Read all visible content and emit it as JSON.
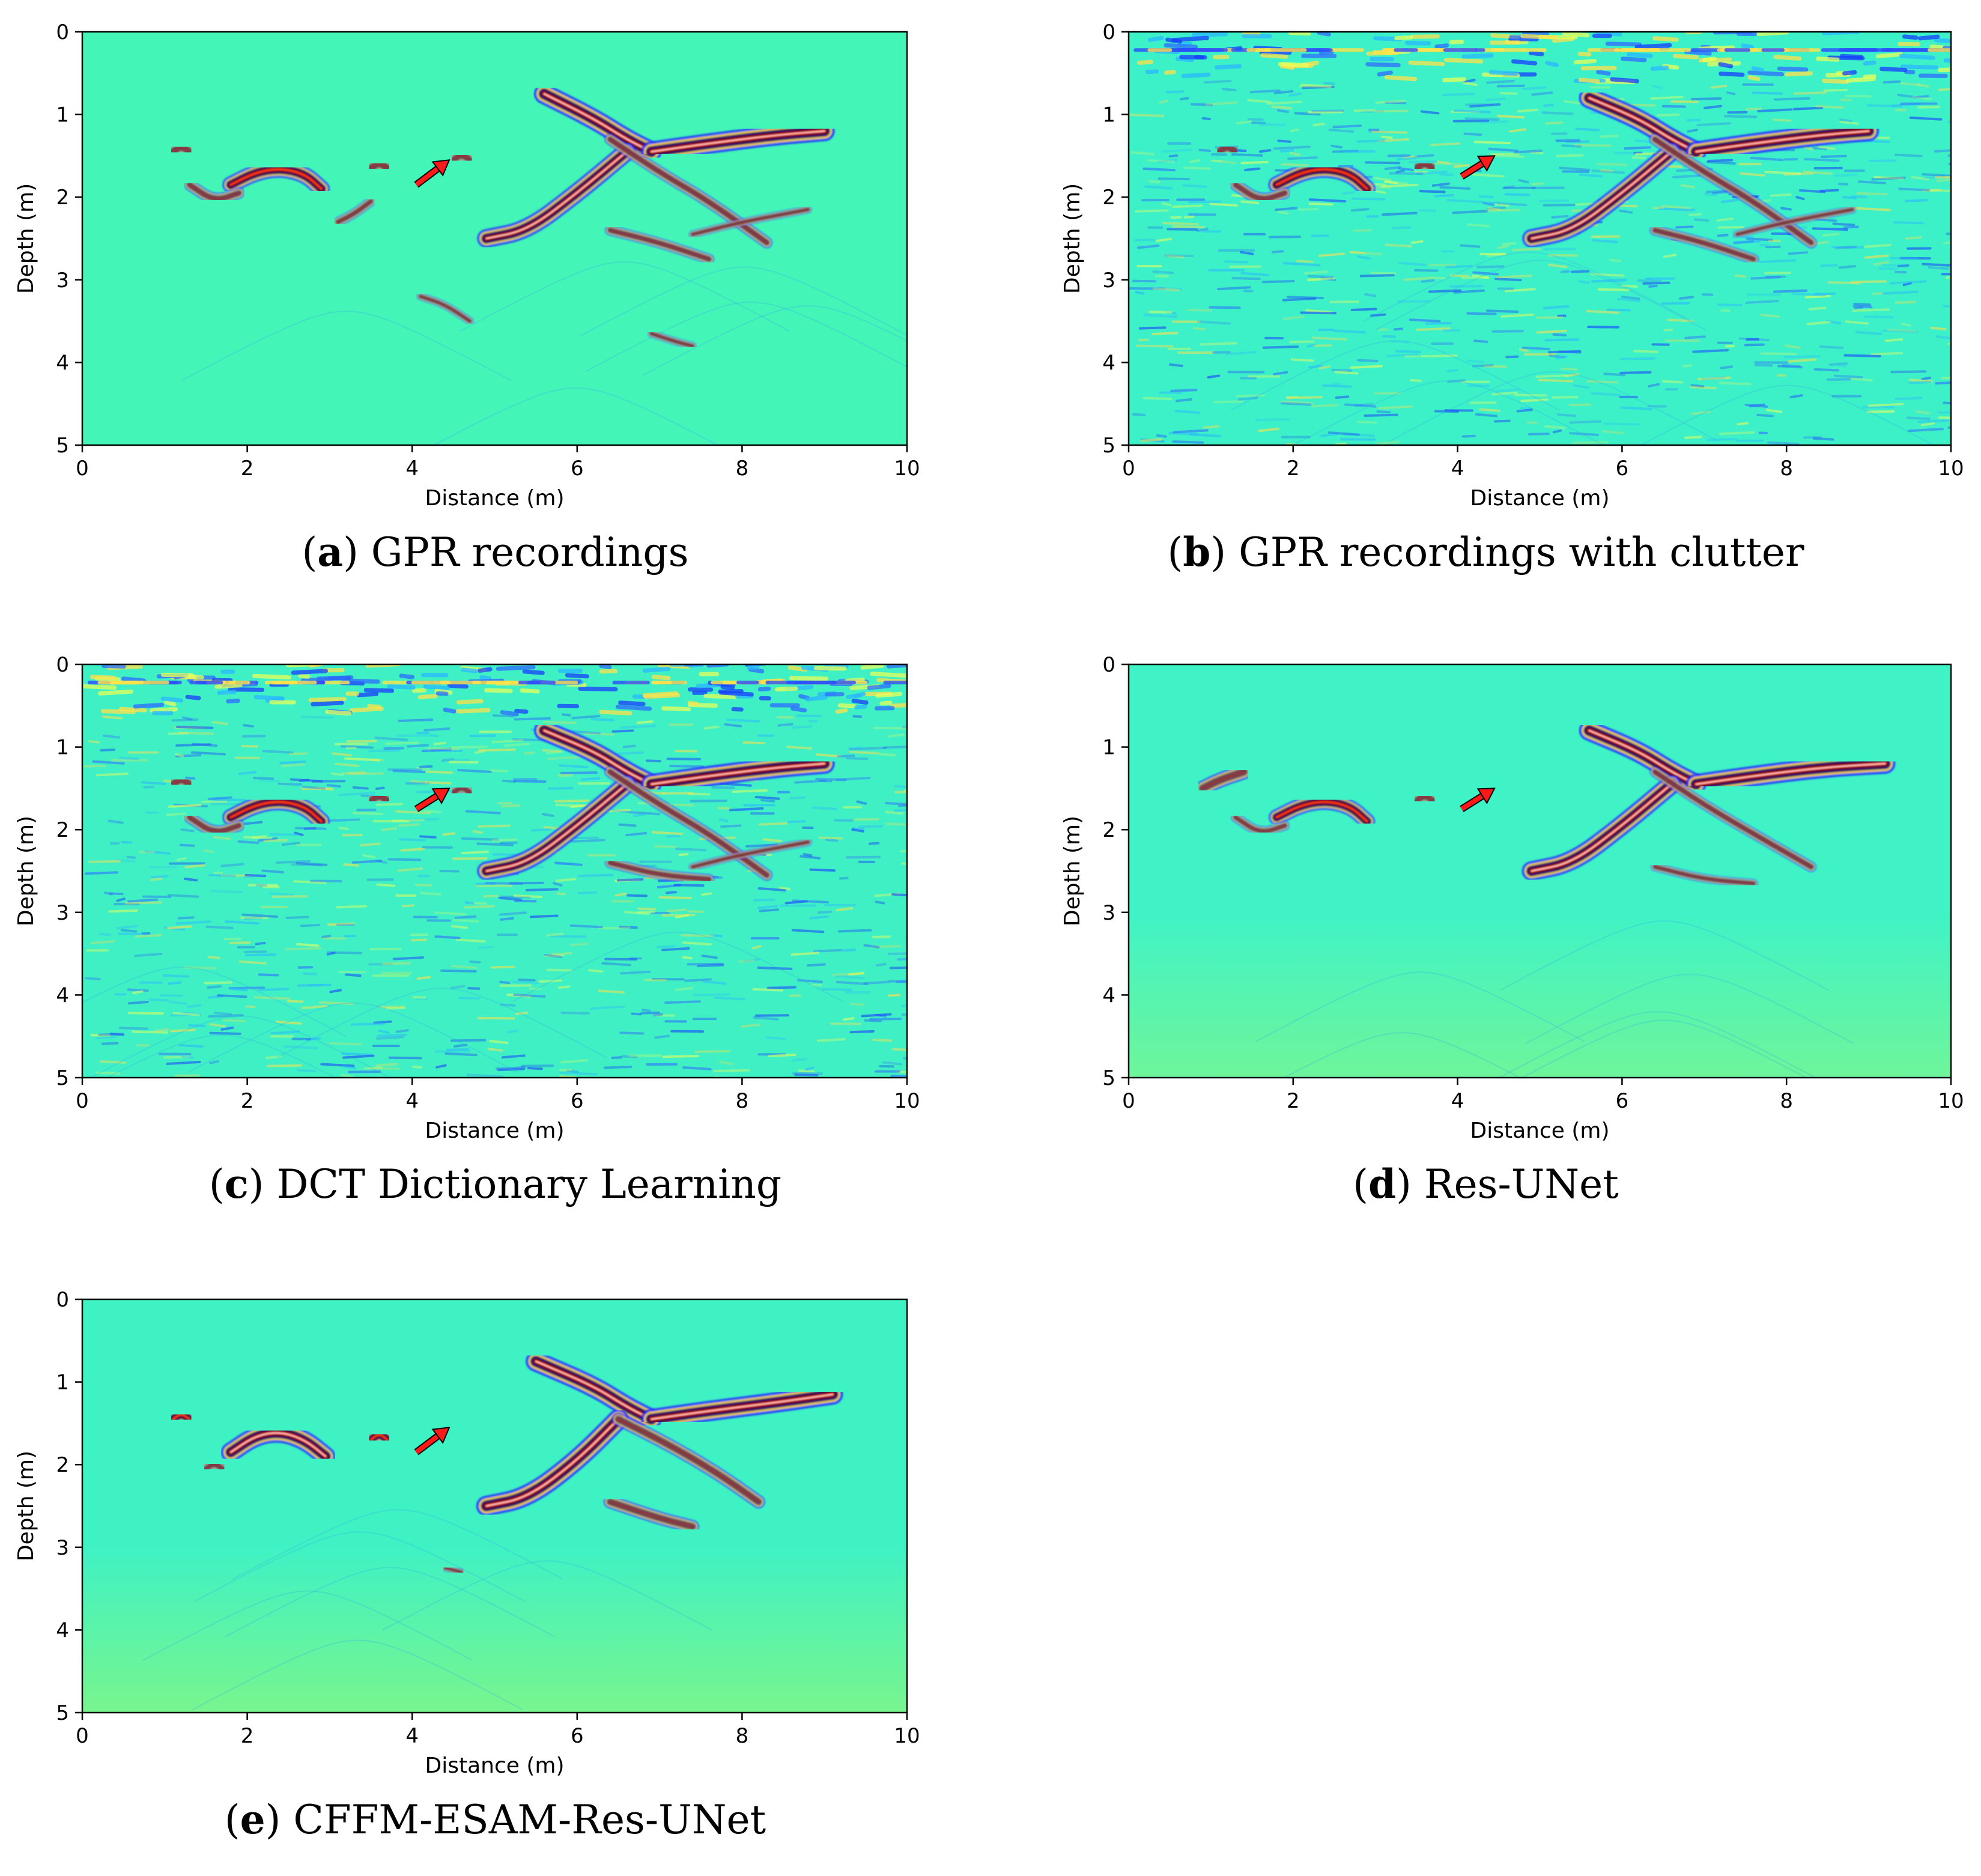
{
  "chart_data": [
    {
      "type": "heatmap",
      "panel_label": "a",
      "caption": "GPR recordings",
      "xlabel": "Distance (m)",
      "ylabel": "Depth (m)",
      "xlim": [
        0,
        10
      ],
      "ylim": [
        5,
        0
      ],
      "xticks": [
        "0",
        "2",
        "4",
        "6",
        "8",
        "10"
      ],
      "yticks": [
        "0",
        "1",
        "2",
        "3",
        "4",
        "5"
      ],
      "colormap": "jet",
      "background_color": "#44f5b8",
      "clutter": false,
      "arrow": {
        "from": [
          4.05,
          1.85
        ],
        "to": [
          4.45,
          1.55
        ],
        "color": "#ff1a1a"
      },
      "reflections": [
        {
          "x": [
            5.6,
            6.2,
            6.6,
            6.9
          ],
          "y": [
            0.75,
            1.05,
            1.3,
            1.45
          ],
          "strength": 1.0
        },
        {
          "x": [
            6.9,
            7.6,
            8.4,
            9.0
          ],
          "y": [
            1.45,
            1.35,
            1.25,
            1.2
          ],
          "strength": 1.0
        },
        {
          "x": [
            4.9,
            5.4,
            6.0,
            6.6
          ],
          "y": [
            2.5,
            2.4,
            1.95,
            1.45
          ],
          "strength": 0.9
        },
        {
          "x": [
            6.4,
            7.0,
            7.6,
            8.3
          ],
          "y": [
            1.3,
            1.7,
            2.05,
            2.55
          ],
          "strength": 0.5
        },
        {
          "x": [
            1.8,
            2.1,
            2.4,
            2.7,
            2.9
          ],
          "y": [
            1.85,
            1.7,
            1.65,
            1.72,
            1.9
          ],
          "strength": 0.8
        },
        {
          "x": [
            1.1,
            1.2,
            1.3
          ],
          "y": [
            1.45,
            1.38,
            1.45
          ],
          "strength": 0.7
        },
        {
          "x": [
            3.5,
            3.6,
            3.7
          ],
          "y": [
            1.65,
            1.58,
            1.65
          ],
          "strength": 0.7
        },
        {
          "x": [
            4.5,
            4.6,
            4.7
          ],
          "y": [
            1.55,
            1.48,
            1.55
          ],
          "strength": 0.6
        },
        {
          "x": [
            1.3,
            1.6,
            1.9
          ],
          "y": [
            1.85,
            2.05,
            1.95
          ],
          "strength": 0.5
        },
        {
          "x": [
            3.1,
            3.3,
            3.5
          ],
          "y": [
            2.3,
            2.2,
            2.05
          ],
          "strength": 0.4
        },
        {
          "x": [
            6.4,
            7.0,
            7.6
          ],
          "y": [
            2.4,
            2.55,
            2.75
          ],
          "strength": 0.45
        },
        {
          "x": [
            7.4,
            8.0,
            8.8
          ],
          "y": [
            2.45,
            2.3,
            2.15
          ],
          "strength": 0.3
        },
        {
          "x": [
            4.1,
            4.4,
            4.7
          ],
          "y": [
            3.2,
            3.3,
            3.5
          ],
          "strength": 0.3
        },
        {
          "x": [
            6.9,
            7.2,
            7.4
          ],
          "y": [
            3.65,
            3.75,
            3.8
          ],
          "strength": 0.3
        }
      ]
    },
    {
      "type": "heatmap",
      "panel_label": "b",
      "caption": "GPR recordings with clutter",
      "xlabel": "Distance (m)",
      "ylabel": "Depth (m)",
      "xlim": [
        0,
        10
      ],
      "ylim": [
        5,
        0
      ],
      "xticks": [
        "0",
        "2",
        "4",
        "6",
        "8",
        "10"
      ],
      "yticks": [
        "0",
        "1",
        "2",
        "3",
        "4",
        "5"
      ],
      "colormap": "jet",
      "background_color": "#3cf0c8",
      "clutter": true,
      "arrow": {
        "from": [
          4.05,
          1.75
        ],
        "to": [
          4.45,
          1.5
        ],
        "color": "#ff1a1a"
      },
      "reflections": [
        {
          "x": [
            5.6,
            6.2,
            6.6,
            6.9
          ],
          "y": [
            0.8,
            1.05,
            1.3,
            1.45
          ],
          "strength": 1.0
        },
        {
          "x": [
            6.9,
            7.6,
            8.4,
            9.0
          ],
          "y": [
            1.45,
            1.35,
            1.25,
            1.2
          ],
          "strength": 1.0
        },
        {
          "x": [
            4.9,
            5.4,
            6.0,
            6.6
          ],
          "y": [
            2.5,
            2.4,
            1.95,
            1.45
          ],
          "strength": 0.9
        },
        {
          "x": [
            6.4,
            7.0,
            7.6,
            8.3
          ],
          "y": [
            1.3,
            1.7,
            2.05,
            2.55
          ],
          "strength": 0.5
        },
        {
          "x": [
            1.8,
            2.1,
            2.4,
            2.7,
            2.9
          ],
          "y": [
            1.85,
            1.7,
            1.65,
            1.72,
            1.9
          ],
          "strength": 0.8
        },
        {
          "x": [
            1.1,
            1.2,
            1.3
          ],
          "y": [
            1.45,
            1.38,
            1.45
          ],
          "strength": 0.7
        },
        {
          "x": [
            3.5,
            3.6,
            3.7
          ],
          "y": [
            1.65,
            1.58,
            1.65
          ],
          "strength": 0.7
        },
        {
          "x": [
            1.3,
            1.6,
            1.9
          ],
          "y": [
            1.85,
            2.05,
            1.95
          ],
          "strength": 0.5
        },
        {
          "x": [
            6.4,
            7.0,
            7.6
          ],
          "y": [
            2.4,
            2.55,
            2.75
          ],
          "strength": 0.45
        },
        {
          "x": [
            7.4,
            8.0,
            8.8
          ],
          "y": [
            2.45,
            2.3,
            2.15
          ],
          "strength": 0.3
        }
      ]
    },
    {
      "type": "heatmap",
      "panel_label": "c",
      "caption": "DCT Dictionary Learning",
      "xlabel": "Distance (m)",
      "ylabel": "Depth (m)",
      "xlim": [
        0,
        10
      ],
      "ylim": [
        5,
        0
      ],
      "xticks": [
        "0",
        "2",
        "4",
        "6",
        "8",
        "10"
      ],
      "yticks": [
        "0",
        "1",
        "2",
        "3",
        "4",
        "5"
      ],
      "colormap": "jet",
      "background_color": "#3ff0c4",
      "clutter": true,
      "arrow": {
        "from": [
          4.05,
          1.75
        ],
        "to": [
          4.45,
          1.5
        ],
        "color": "#ff1a1a"
      },
      "reflections": [
        {
          "x": [
            5.6,
            6.2,
            6.6,
            6.9
          ],
          "y": [
            0.8,
            1.05,
            1.3,
            1.45
          ],
          "strength": 1.0
        },
        {
          "x": [
            6.9,
            7.6,
            8.4,
            9.0
          ],
          "y": [
            1.45,
            1.35,
            1.25,
            1.2
          ],
          "strength": 1.0
        },
        {
          "x": [
            4.9,
            5.4,
            6.0,
            6.6
          ],
          "y": [
            2.5,
            2.4,
            1.95,
            1.45
          ],
          "strength": 0.9
        },
        {
          "x": [
            6.4,
            7.0,
            7.6,
            8.3
          ],
          "y": [
            1.3,
            1.7,
            2.05,
            2.55
          ],
          "strength": 0.5
        },
        {
          "x": [
            1.8,
            2.1,
            2.4,
            2.7,
            2.9
          ],
          "y": [
            1.85,
            1.7,
            1.65,
            1.72,
            1.9
          ],
          "strength": 0.8
        },
        {
          "x": [
            1.1,
            1.2,
            1.3
          ],
          "y": [
            1.45,
            1.38,
            1.45
          ],
          "strength": 0.7
        },
        {
          "x": [
            3.5,
            3.6,
            3.7
          ],
          "y": [
            1.65,
            1.58,
            1.65
          ],
          "strength": 0.7
        },
        {
          "x": [
            4.5,
            4.6,
            4.7
          ],
          "y": [
            1.55,
            1.48,
            1.55
          ],
          "strength": 0.5
        },
        {
          "x": [
            1.3,
            1.6,
            1.9
          ],
          "y": [
            1.85,
            2.05,
            1.95
          ],
          "strength": 0.5
        },
        {
          "x": [
            6.4,
            7.0,
            7.6
          ],
          "y": [
            2.4,
            2.55,
            2.6
          ],
          "strength": 0.45
        },
        {
          "x": [
            7.4,
            8.0,
            8.8
          ],
          "y": [
            2.45,
            2.3,
            2.15
          ],
          "strength": 0.3
        }
      ]
    },
    {
      "type": "heatmap",
      "panel_label": "d",
      "caption": "Res-UNet",
      "xlabel": "Distance (m)",
      "ylabel": "Depth (m)",
      "xlim": [
        0,
        10
      ],
      "ylim": [
        5,
        0
      ],
      "xticks": [
        "0",
        "2",
        "4",
        "6",
        "8",
        "10"
      ],
      "yticks": [
        "0",
        "1",
        "2",
        "3",
        "4",
        "5"
      ],
      "colormap": "jet",
      "background_color": "#3ff3c6",
      "background_bottom_color": "#6ef59a",
      "clutter": false,
      "arrow": {
        "from": [
          4.05,
          1.75
        ],
        "to": [
          4.45,
          1.5
        ],
        "color": "#ff1a1a"
      },
      "reflections": [
        {
          "x": [
            5.6,
            6.2,
            6.6,
            6.9
          ],
          "y": [
            0.8,
            1.05,
            1.3,
            1.45
          ],
          "strength": 1.0
        },
        {
          "x": [
            6.9,
            7.6,
            8.4,
            9.2
          ],
          "y": [
            1.45,
            1.35,
            1.25,
            1.2
          ],
          "strength": 1.0
        },
        {
          "x": [
            4.9,
            5.4,
            6.0,
            6.6
          ],
          "y": [
            2.5,
            2.4,
            1.95,
            1.45
          ],
          "strength": 0.95
        },
        {
          "x": [
            6.4,
            7.0,
            7.6,
            8.3
          ],
          "y": [
            1.3,
            1.7,
            2.05,
            2.45
          ],
          "strength": 0.45
        },
        {
          "x": [
            1.8,
            2.1,
            2.4,
            2.7,
            2.9
          ],
          "y": [
            1.85,
            1.7,
            1.65,
            1.72,
            1.9
          ],
          "strength": 0.75
        },
        {
          "x": [
            0.9,
            1.1,
            1.4
          ],
          "y": [
            1.5,
            1.4,
            1.3
          ],
          "strength": 0.7
        },
        {
          "x": [
            3.5,
            3.6,
            3.7
          ],
          "y": [
            1.65,
            1.58,
            1.65
          ],
          "strength": 0.6
        },
        {
          "x": [
            1.3,
            1.6,
            1.9
          ],
          "y": [
            1.85,
            2.05,
            1.95
          ],
          "strength": 0.4
        },
        {
          "x": [
            6.4,
            7.0,
            7.6
          ],
          "y": [
            2.45,
            2.6,
            2.65
          ],
          "strength": 0.35
        }
      ]
    },
    {
      "type": "heatmap",
      "panel_label": "e",
      "caption": "CFFM-ESAM-Res-UNet",
      "xlabel": "Distance (m)",
      "ylabel": "Depth (m)",
      "xlim": [
        0,
        10
      ],
      "ylim": [
        5,
        0
      ],
      "xticks": [
        "0",
        "2",
        "4",
        "6",
        "8",
        "10"
      ],
      "yticks": [
        "0",
        "1",
        "2",
        "3",
        "4",
        "5"
      ],
      "colormap": "jet",
      "background_color": "#3ff2c4",
      "background_bottom_color": "#78f58e",
      "clutter": false,
      "arrow": {
        "from": [
          4.05,
          1.85
        ],
        "to": [
          4.45,
          1.55
        ],
        "color": "#ff1a1a"
      },
      "reflections": [
        {
          "x": [
            5.5,
            6.2,
            6.6,
            6.9
          ],
          "y": [
            0.75,
            1.05,
            1.3,
            1.45
          ],
          "strength": 1.0
        },
        {
          "x": [
            6.9,
            7.6,
            8.4,
            9.1
          ],
          "y": [
            1.45,
            1.35,
            1.25,
            1.15
          ],
          "strength": 1.0
        },
        {
          "x": [
            4.9,
            5.4,
            6.0,
            6.5
          ],
          "y": [
            2.5,
            2.4,
            1.95,
            1.45
          ],
          "strength": 1.0
        },
        {
          "x": [
            6.5,
            7.1,
            7.7,
            8.2
          ],
          "y": [
            1.45,
            1.75,
            2.1,
            2.45
          ],
          "strength": 0.6
        },
        {
          "x": [
            1.8,
            2.1,
            2.4,
            2.7,
            2.95
          ],
          "y": [
            1.85,
            1.65,
            1.6,
            1.7,
            1.9
          ],
          "strength": 0.95
        },
        {
          "x": [
            1.1,
            1.2,
            1.3
          ],
          "y": [
            1.45,
            1.38,
            1.45
          ],
          "strength": 0.75
        },
        {
          "x": [
            3.5,
            3.6,
            3.7
          ],
          "y": [
            1.7,
            1.62,
            1.7
          ],
          "strength": 0.75
        },
        {
          "x": [
            1.5,
            1.6,
            1.7
          ],
          "y": [
            2.05,
            1.98,
            2.05
          ],
          "strength": 0.5
        },
        {
          "x": [
            6.4,
            7.0,
            7.4
          ],
          "y": [
            2.45,
            2.65,
            2.75
          ],
          "strength": 0.6
        },
        {
          "x": [
            4.4,
            4.6
          ],
          "y": [
            3.25,
            3.3
          ],
          "strength": 0.25
        }
      ]
    }
  ]
}
